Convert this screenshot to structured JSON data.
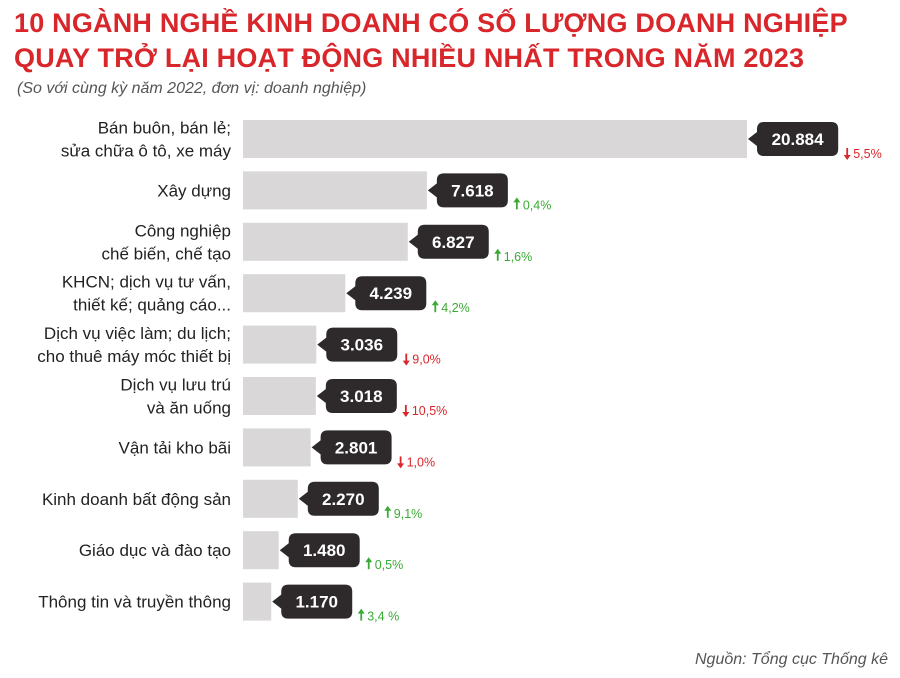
{
  "title_line1": "10 NGÀNH NGHỀ KINH DOANH CÓ SỐ LƯỢNG DOANH NGHIỆP",
  "title_line2": "QUAY TRỞ LẠI HOẠT ĐỘNG NHIỀU NHẤT TRONG NĂM 2023",
  "subtitle": "(So với cùng kỳ năm 2022, đơn vị: doanh nghiệp)",
  "source": "Nguồn: Tổng cục Thống kê",
  "colors": {
    "title": "#d8262b",
    "bar": "#d9d7d8",
    "badge": "#2e2a2b",
    "up": "#3aaa35",
    "down": "#d8262b"
  },
  "chart_data": {
    "type": "bar",
    "orientation": "horizontal",
    "categories": [
      [
        "Bán buôn, bán lẻ;",
        "sửa chữa ô tô, xe máy"
      ],
      [
        "Xây dựng"
      ],
      [
        "Công nghiệp",
        "chế biến, chế tạo"
      ],
      [
        "KHCN; dịch vụ tư vấn,",
        "thiết kế; quảng cáo..."
      ],
      [
        "Dịch vụ việc làm; du lịch;",
        "cho thuê máy móc thiết bị"
      ],
      [
        "Dịch vụ lưu trú",
        "và ăn uống"
      ],
      [
        "Vận tải kho bãi"
      ],
      [
        "Kinh doanh bất động sản"
      ],
      [
        "Giáo dục và đào tạo"
      ],
      [
        "Thông tin và truyền thông"
      ]
    ],
    "values": [
      20884,
      7618,
      6827,
      4239,
      3036,
      3018,
      2801,
      2270,
      1480,
      1170
    ],
    "value_labels": [
      "20.884",
      "7.618",
      "6.827",
      "4.239",
      "3.036",
      "3.018",
      "2.801",
      "2.270",
      "1.480",
      "1.170"
    ],
    "changes": [
      {
        "dir": "down",
        "label": "5,5%"
      },
      {
        "dir": "up",
        "label": "0,4%"
      },
      {
        "dir": "up",
        "label": "1,6%"
      },
      {
        "dir": "up",
        "label": "4,2%"
      },
      {
        "dir": "down",
        "label": "9,0%"
      },
      {
        "dir": "down",
        "label": "10,5%"
      },
      {
        "dir": "down",
        "label": "1,0%"
      },
      {
        "dir": "up",
        "label": "9,1%"
      },
      {
        "dir": "up",
        "label": "0,5%"
      },
      {
        "dir": "up",
        "label": "3,4 %"
      }
    ],
    "xlim": [
      0,
      20884
    ],
    "grid": false,
    "legend": "none"
  }
}
